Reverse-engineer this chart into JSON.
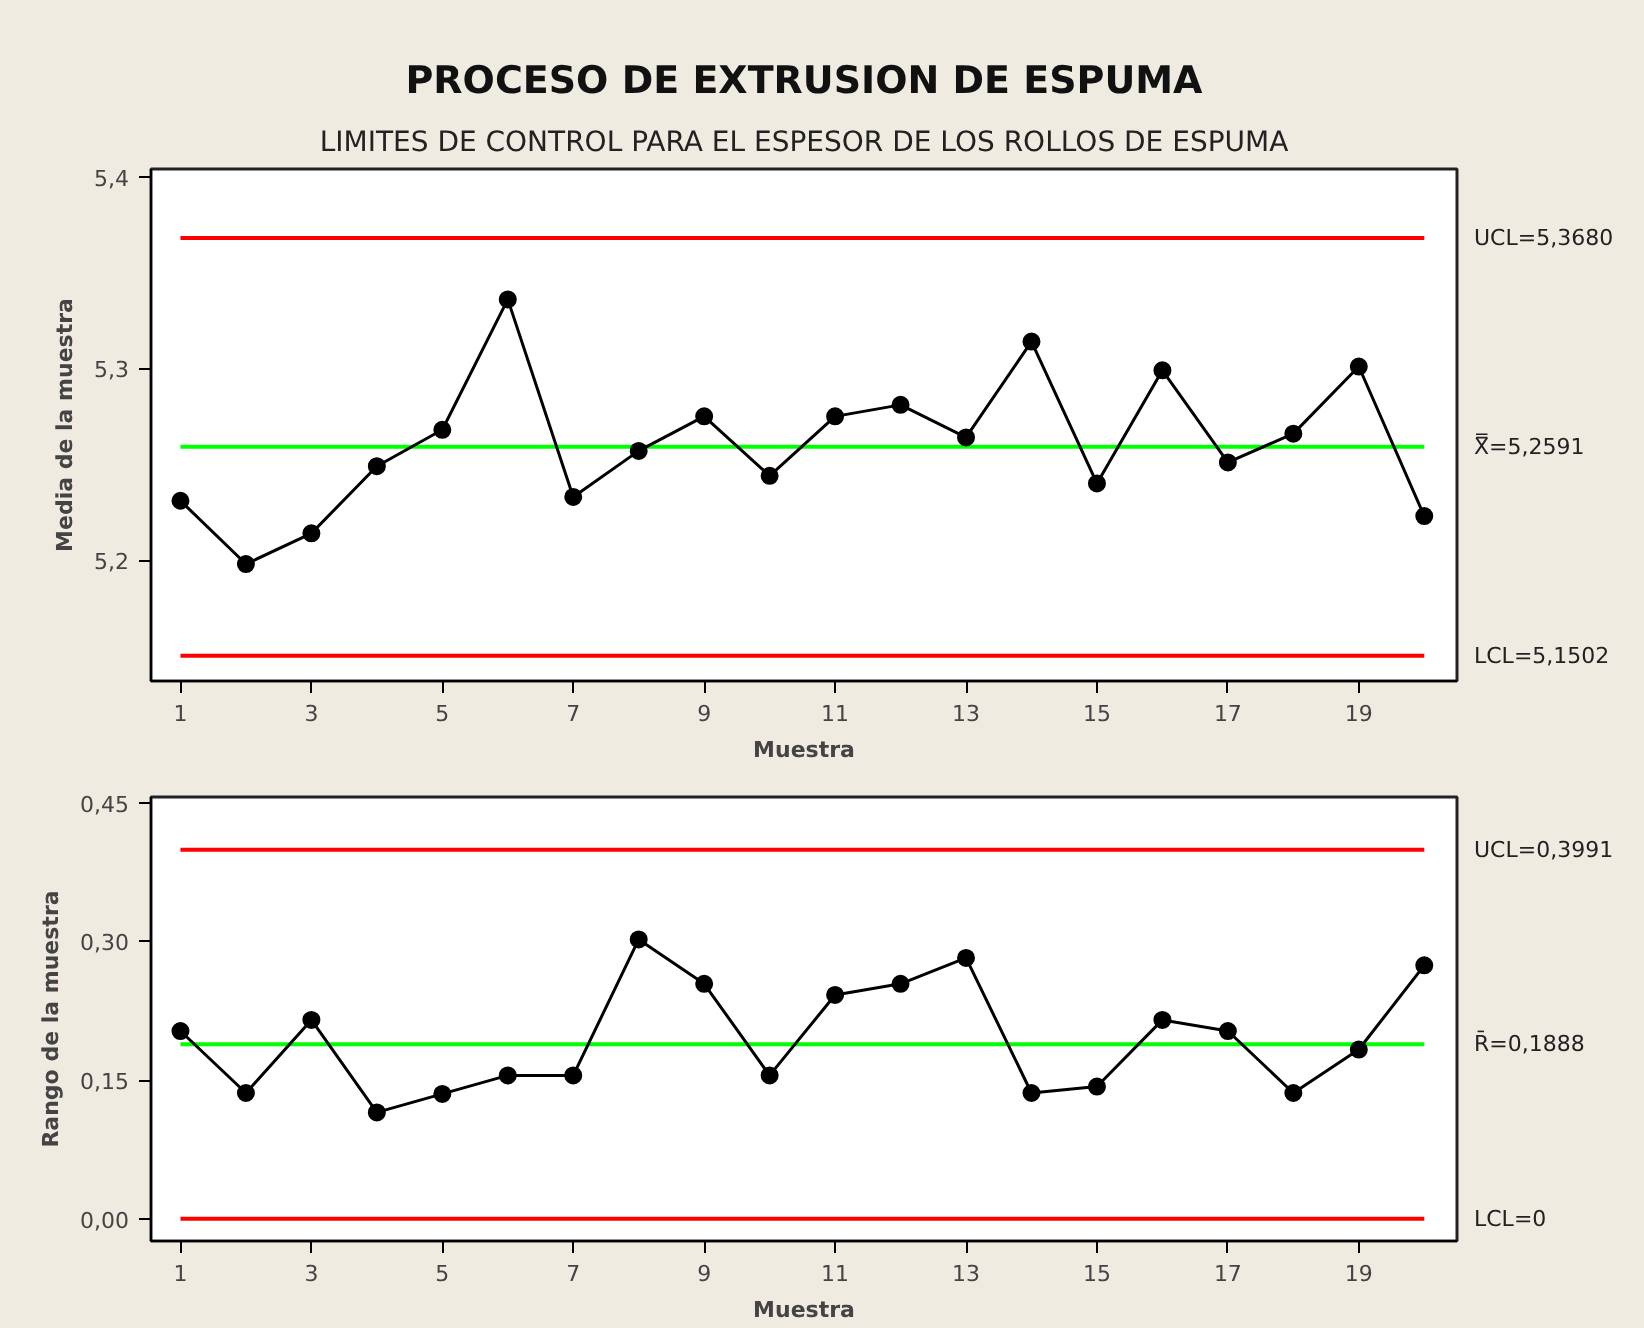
{
  "chart_data": [
    {
      "type": "line",
      "title": "PROCESO DE EXTRUSION DE ESPUMA",
      "subtitle": "LIMITES DE CONTROL PARA EL ESPESOR DE LOS ROLLOS DE ESPUMA",
      "xlabel": "Muestra",
      "ylabel": "Media de la muestra",
      "x": [
        1,
        2,
        3,
        4,
        5,
        6,
        7,
        8,
        9,
        10,
        11,
        12,
        13,
        14,
        15,
        16,
        17,
        18,
        19,
        20
      ],
      "series": [
        {
          "color": "#000000",
          "values": [
            5.231,
            5.198,
            5.214,
            5.249,
            5.268,
            5.336,
            5.233,
            5.257,
            5.275,
            5.244,
            5.275,
            5.281,
            5.264,
            5.314,
            5.24,
            5.299,
            5.251,
            5.266,
            5.301,
            5.223
          ]
        }
      ],
      "xlim": [
        0.55,
        20.5
      ],
      "xticks": [
        1,
        3,
        5,
        7,
        9,
        11,
        13,
        15,
        17,
        19
      ],
      "ylim": [
        5.137,
        5.404
      ],
      "yticks": [
        {
          "value": 5.2,
          "label": "5,2"
        },
        {
          "value": 5.3,
          "label": "5,3"
        },
        {
          "value": 5.4,
          "label": "5,4"
        }
      ],
      "ref_lines": [
        {
          "axis": "y",
          "value": 5.368,
          "label": "UCL=5,3680",
          "color": "#ff0000"
        },
        {
          "axis": "y",
          "value": 5.2591,
          "label": "X̿=5,2591",
          "color": "#00ff00"
        },
        {
          "axis": "y",
          "value": 5.1502,
          "label": "LCL=5,1502",
          "color": "#ff0000"
        }
      ],
      "marker": "circle",
      "line_style": "solid",
      "grid": false
    },
    {
      "type": "line",
      "xlabel": "Muestra",
      "ylabel": "Rango de la muestra",
      "x": [
        1,
        2,
        3,
        4,
        5,
        6,
        7,
        8,
        9,
        10,
        11,
        12,
        13,
        14,
        15,
        16,
        17,
        18,
        19,
        20
      ],
      "series": [
        {
          "color": "#000000",
          "values": [
            0.203,
            0.136,
            0.215,
            0.115,
            0.135,
            0.155,
            0.155,
            0.302,
            0.254,
            0.155,
            0.242,
            0.254,
            0.282,
            0.136,
            0.143,
            0.215,
            0.203,
            0.136,
            0.183,
            0.274
          ]
        }
      ],
      "xlim": [
        0.55,
        20.5
      ],
      "xticks": [
        1,
        3,
        5,
        7,
        9,
        11,
        13,
        15,
        17,
        19
      ],
      "ylim": [
        -0.024,
        0.456
      ],
      "yticks": [
        {
          "value": 0.0,
          "label": "0,00"
        },
        {
          "value": 0.15,
          "label": "0,15"
        },
        {
          "value": 0.3,
          "label": "0,30"
        },
        {
          "value": 0.45,
          "label": "0,45"
        }
      ],
      "ref_lines": [
        {
          "axis": "y",
          "value": 0.3991,
          "label": "UCL=0,3991",
          "color": "#ff0000"
        },
        {
          "axis": "y",
          "value": 0.1888,
          "label": "R̄=0,1888",
          "color": "#00ff00"
        },
        {
          "axis": "y",
          "value": 0,
          "label": "LCL=0",
          "color": "#ff0000"
        }
      ],
      "marker": "circle",
      "line_style": "solid",
      "grid": false
    }
  ]
}
